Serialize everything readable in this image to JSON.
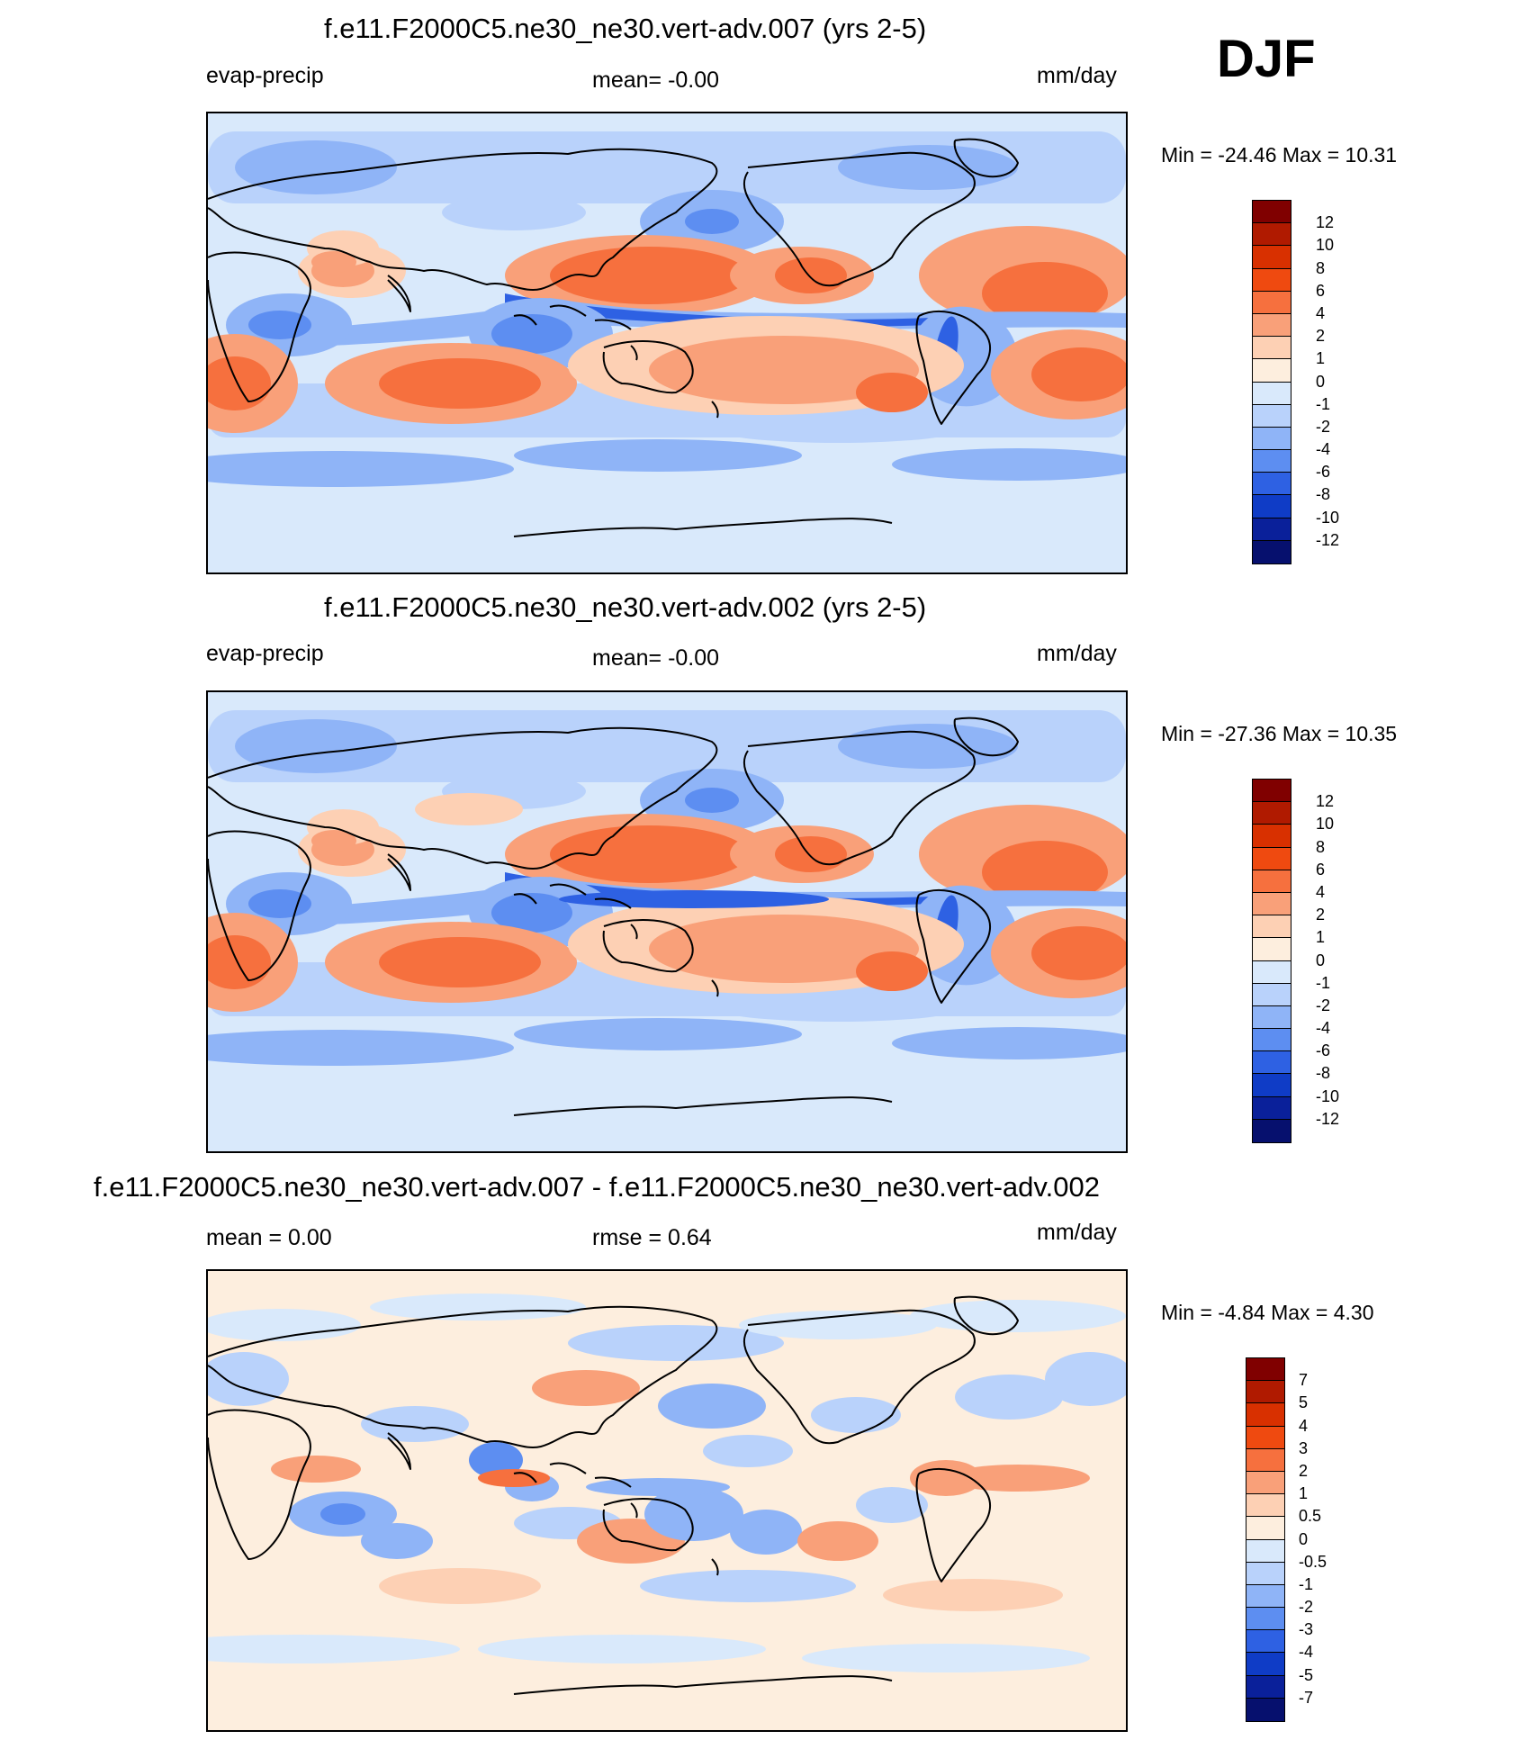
{
  "season": "DJF",
  "panels": [
    {
      "title": "f.e11.F2000C5.ne30_ne30.vert-adv.007 (yrs 2-5)",
      "left_label": "evap-precip",
      "center_label": "mean=  -0.00",
      "units": "mm/day",
      "minmax": "Min = -24.46 Max =  10.31",
      "colorbar": {
        "labels": [
          "12",
          "10",
          "8",
          "6",
          "4",
          "2",
          "1",
          "0",
          "-1",
          "-2",
          "-4",
          "-6",
          "-8",
          "-10",
          "-12"
        ],
        "colors": [
          "#800000",
          "#b01a00",
          "#d83000",
          "#ef4a10",
          "#f6703e",
          "#f9a079",
          "#fdd0b4",
          "#fdeede",
          "#d9e9fb",
          "#b9d2fb",
          "#8fb4f7",
          "#5d8ef1",
          "#2e61e3",
          "#0f3cc6",
          "#0a209a",
          "#06106e"
        ]
      },
      "map_variant": "a"
    },
    {
      "title": "f.e11.F2000C5.ne30_ne30.vert-adv.002 (yrs 2-5)",
      "left_label": "evap-precip",
      "center_label": "mean=  -0.00",
      "units": "mm/day",
      "minmax": "Min = -27.36 Max =  10.35",
      "colorbar": {
        "labels": [
          "12",
          "10",
          "8",
          "6",
          "4",
          "2",
          "1",
          "0",
          "-1",
          "-2",
          "-4",
          "-6",
          "-8",
          "-10",
          "-12"
        ],
        "colors": [
          "#800000",
          "#b01a00",
          "#d83000",
          "#ef4a10",
          "#f6703e",
          "#f9a079",
          "#fdd0b4",
          "#fdeede",
          "#d9e9fb",
          "#b9d2fb",
          "#8fb4f7",
          "#5d8ef1",
          "#2e61e3",
          "#0f3cc6",
          "#0a209a",
          "#06106e"
        ]
      },
      "map_variant": "b"
    },
    {
      "title": "f.e11.F2000C5.ne30_ne30.vert-adv.007 - f.e11.F2000C5.ne30_ne30.vert-adv.002",
      "left_label": "mean =   0.00",
      "center_label": "rmse =   0.64",
      "units": "mm/day",
      "minmax": "Min =  -4.84 Max =   4.30",
      "colorbar": {
        "labels": [
          "7",
          "5",
          "4",
          "3",
          "2",
          "1",
          "0.5",
          "0",
          "-0.5",
          "-1",
          "-2",
          "-3",
          "-4",
          "-5",
          "-7"
        ],
        "colors": [
          "#800000",
          "#b01a00",
          "#d83000",
          "#ef4a10",
          "#f6703e",
          "#f9a079",
          "#fdd0b4",
          "#fdeede",
          "#d9e9fb",
          "#b9d2fb",
          "#8fb4f7",
          "#5d8ef1",
          "#2e61e3",
          "#0f3cc6",
          "#0a209a",
          "#06106e"
        ]
      },
      "map_variant": "diff"
    }
  ]
}
